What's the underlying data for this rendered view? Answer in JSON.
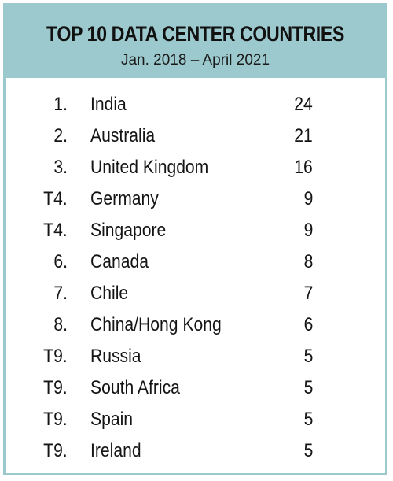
{
  "header": {
    "title": "TOP 10 DATA CENTER COUNTRIES",
    "subtitle": "Jan. 2018 – April 2021"
  },
  "colors": {
    "header_bg": "#9cc9cd",
    "border": "#9cc9cd"
  },
  "rows": [
    {
      "rank": "1.",
      "country": "India",
      "count": "24"
    },
    {
      "rank": "2.",
      "country": "Australia",
      "count": "21"
    },
    {
      "rank": "3.",
      "country": "United Kingdom",
      "count": "16"
    },
    {
      "rank": "T4.",
      "country": "Germany",
      "count": "9"
    },
    {
      "rank": "T4.",
      "country": "Singapore",
      "count": "9"
    },
    {
      "rank": "6.",
      "country": "Canada",
      "count": "8"
    },
    {
      "rank": "7.",
      "country": "Chile",
      "count": "7"
    },
    {
      "rank": "8.",
      "country": "China/Hong Kong",
      "count": "6"
    },
    {
      "rank": "T9.",
      "country": "Russia",
      "count": "5"
    },
    {
      "rank": "T9.",
      "country": "South Africa",
      "count": "5"
    },
    {
      "rank": "T9.",
      "country": "Spain",
      "count": "5"
    },
    {
      "rank": "T9.",
      "country": "Ireland",
      "count": "5"
    }
  ]
}
